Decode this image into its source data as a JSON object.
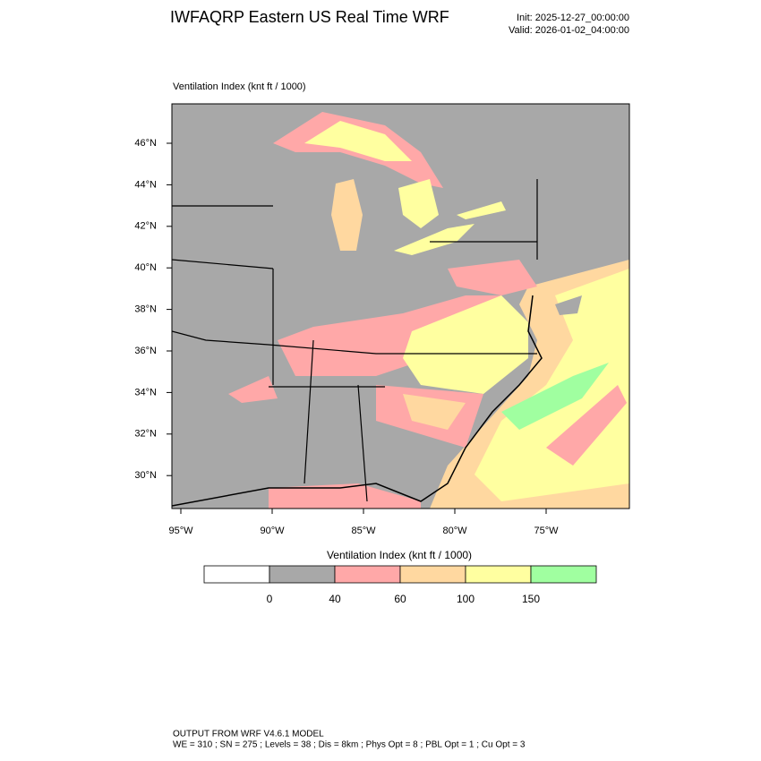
{
  "header": {
    "title": "IWFAQRP Eastern US Real Time WRF",
    "init": "Init: 2025-12-27_00:00:00",
    "valid": "Valid: 2026-01-02_04:00:00"
  },
  "map": {
    "title": "Ventilation Index   (knt ft / 1000)",
    "lat_labels": [
      "46°N",
      "44°N",
      "42°N",
      "40°N",
      "38°N",
      "36°N",
      "34°N",
      "32°N",
      "30°N"
    ],
    "lon_labels": [
      "95°W",
      "90°W",
      "85°W",
      "80°W",
      "75°W"
    ]
  },
  "colorbar": {
    "title": "Ventilation Index  (knt ft / 1000)",
    "levels": [
      0,
      40,
      60,
      100,
      150
    ],
    "colors": [
      "#ffffff",
      "#a8a8a8",
      "#ffa8a8",
      "#ffd8a0",
      "#ffff a0",
      "#a0ffa0"
    ]
  },
  "footer": {
    "line1": "OUTPUT FROM WRF V4.6.1 MODEL",
    "line2": "WE = 310 ; SN = 275 ; Levels = 38 ; Dis = 8km ; Phys Opt = 8 ; PBL Opt = 1 ; Cu Opt = 3"
  }
}
